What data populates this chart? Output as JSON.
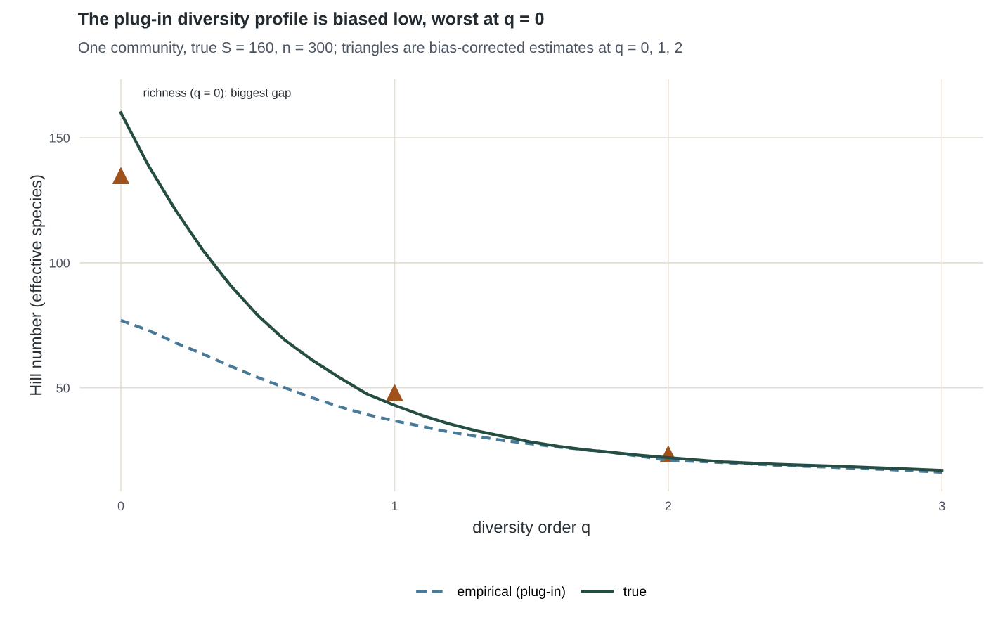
{
  "chart_data": {
    "type": "line",
    "title": "The plug-in diversity profile is biased low, worst at q = 0",
    "subtitle": "One community, true S = 160, n = 300; triangles are bias-corrected estimates at q = 0, 1, 2",
    "xlabel": "diversity order q",
    "ylabel": "Hill number (effective species)",
    "xlim": [
      -0.15,
      3.15
    ],
    "ylim": [
      8.6,
      173.4
    ],
    "xticks": [
      0,
      1,
      2,
      3
    ],
    "yticks": [
      50,
      100,
      150
    ],
    "grid": true,
    "legend": "bottom",
    "annotations": [
      "richness (q = 0): biggest gap"
    ],
    "series": [
      {
        "name": "empirical (plug-in)",
        "color": "#4a7a9a",
        "line_style": "dashed",
        "marker": "none",
        "x": [
          0,
          0.1,
          0.2,
          0.3,
          0.4,
          0.5,
          0.6,
          0.7,
          0.8,
          0.9,
          1.0,
          1.2,
          1.4,
          1.6,
          1.8,
          2.0,
          2.2,
          2.4,
          2.6,
          2.8,
          3.0
        ],
        "values": [
          77,
          73,
          68,
          63.5,
          58.7,
          54.2,
          50,
          46,
          42.4,
          39.3,
          36.8,
          32.3,
          28.9,
          26.3,
          24.1,
          21,
          20.1,
          19,
          18.2,
          17.3,
          16.2
        ]
      },
      {
        "name": "true",
        "color": "#264d42",
        "line_style": "solid",
        "marker": "none",
        "x": [
          0,
          0.1,
          0.2,
          0.3,
          0.4,
          0.5,
          0.6,
          0.7,
          0.8,
          0.9,
          1.0,
          1.1,
          1.2,
          1.3,
          1.4,
          1.5,
          1.6,
          1.7,
          1.8,
          1.9,
          2.0,
          2.2,
          2.4,
          2.6,
          2.8,
          3.0
        ],
        "values": [
          160,
          139,
          121,
          105,
          91,
          79,
          69,
          61,
          54,
          47.5,
          43,
          39,
          35.6,
          32.8,
          30.5,
          28.3,
          26.6,
          25.2,
          24.1,
          23,
          22.1,
          20.4,
          19.4,
          18.7,
          17.9,
          17
        ]
      },
      {
        "type": "scatter",
        "color": "#a0521c",
        "marker": "triangle",
        "x": [
          0,
          1,
          2
        ],
        "values": [
          134.8,
          48,
          23.5
        ]
      }
    ]
  }
}
